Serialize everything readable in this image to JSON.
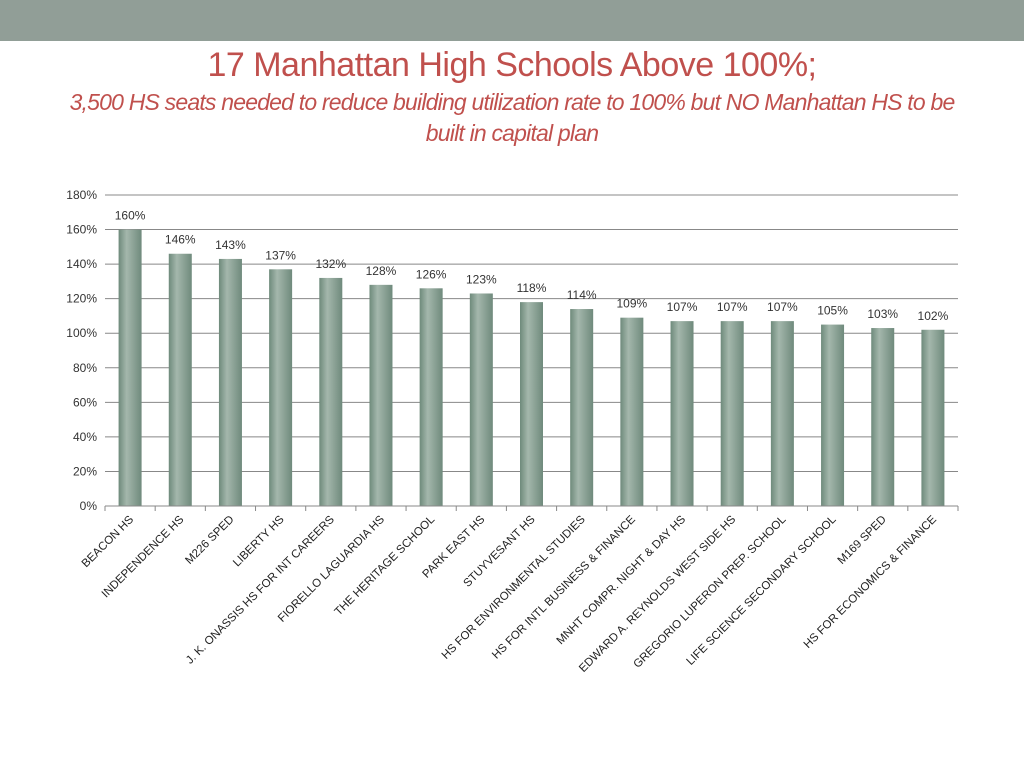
{
  "header": {
    "title": "17 Manhattan High Schools Above 100%;",
    "subtitle": "3,500 HS seats needed to reduce building utilization rate to 100% but NO Manhattan HS to be built in capital plan"
  },
  "colors": {
    "top_bar": "#919e97",
    "title": "#c0504d",
    "bar": "#7b9486",
    "bar_highlight": "#a4b7ac",
    "grid": "#888888"
  },
  "chart_data": {
    "type": "bar",
    "title": "",
    "xlabel": "",
    "ylabel": "",
    "ylim": [
      0,
      180
    ],
    "ytick_step": 20,
    "ytick_format": "%",
    "grid": true,
    "legend": "none",
    "categories": [
      "BEACON HS",
      "INDEPENDENCE HS",
      "M226 SPED",
      "LIBERTY HS",
      "J. K. ONASSIS HS FOR INT CAREERS",
      "FIORELLO LAGUARDIA HS",
      "THE HERITAGE SCHOOL",
      "PARK EAST HS",
      "STUYVESANT HS",
      "HS FOR ENVIRONMENTAL STUDIES",
      "HS FOR INTL BUSINESS & FINANCE",
      "MNHT COMPR. NIGHT & DAY HS",
      "EDWARD A. REYNOLDS WEST SIDE HS",
      "GREGORIO LUPERON PREP. SCHOOL",
      "LIFE SCIENCE SECONDARY SCHOOL",
      "M169 SPED",
      "HS FOR ECONOMICS & FINANCE"
    ],
    "values": [
      160,
      146,
      143,
      137,
      132,
      128,
      126,
      123,
      118,
      114,
      109,
      107,
      107,
      107,
      105,
      103,
      102
    ],
    "data_labels": [
      "160%",
      "146%",
      "143%",
      "137%",
      "132%",
      "128%",
      "126%",
      "123%",
      "118%",
      "114%",
      "109%",
      "107%",
      "107%",
      "107%",
      "105%",
      "103%",
      "102%"
    ]
  }
}
